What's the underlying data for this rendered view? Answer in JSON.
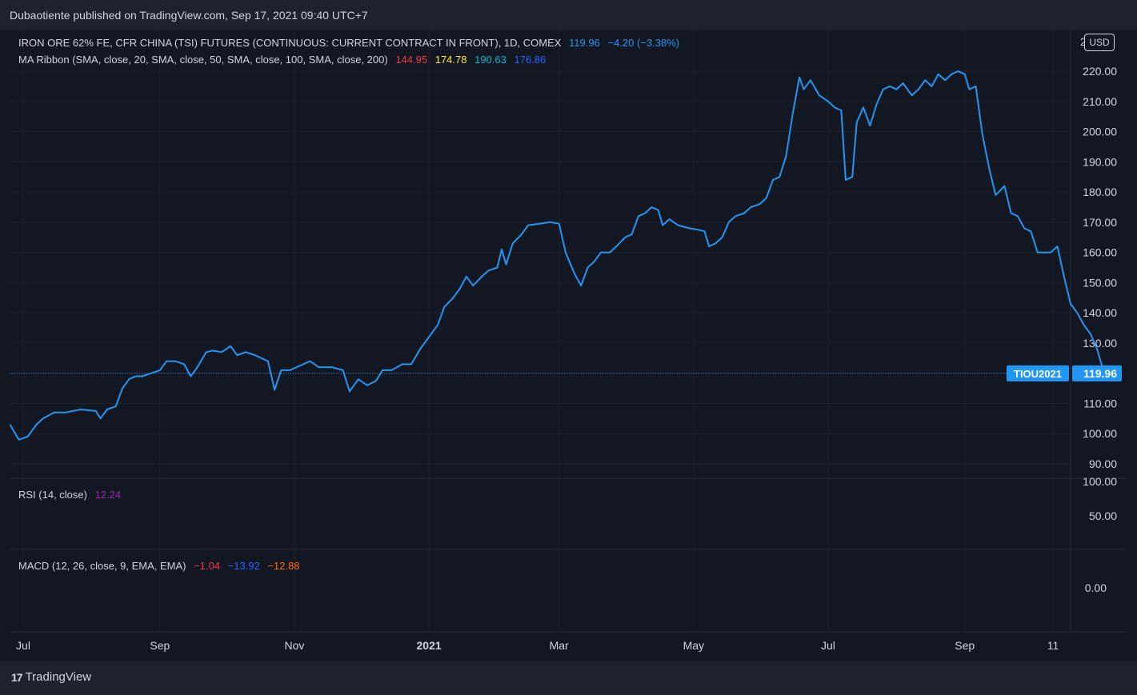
{
  "header": {
    "publish_line": "Dubaotiente published on TradingView.com, Sep 17, 2021 09:40 UTC+7"
  },
  "footer": {
    "brand": "TradingView"
  },
  "legend": {
    "main_title": "IRON ORE 62% FE, CFR CHINA (TSI) FUTURES (CONTINUOUS: CURRENT CONTRACT IN FRONT), 1D, COMEX",
    "main_price": "119.96",
    "main_change": "−4.20 (−3.38%)",
    "ma_title": "MA Ribbon (SMA, close, 20, SMA, close, 50, SMA, close, 100, SMA, close, 200)",
    "ma_values": [
      "144.95",
      "174.78",
      "190.63",
      "176.86"
    ],
    "rsi_title": "RSI (14, close)",
    "rsi_value": "12.24",
    "macd_title": "MACD (12, 26, close, 9, EMA, EMA)",
    "macd_values": [
      "−1.04",
      "−13.92",
      "−12.88"
    ]
  },
  "price_scale": {
    "currency_button": "USD",
    "partial_top_label": "2"
  },
  "colors": {
    "background": "#131722",
    "grid": "#1e2230",
    "line": "#2196f3",
    "axis_text": "#d1d4dc",
    "price_tag": "#2196f3"
  },
  "chart_data": {
    "type": "line",
    "ylim": [
      88,
      228
    ],
    "yticks": [
      "90.00",
      "100.00",
      "110.00",
      "120.00",
      "130.00",
      "140.00",
      "150.00",
      "160.00",
      "170.00",
      "180.00",
      "190.00",
      "200.00",
      "210.00",
      "220.00"
    ],
    "xaxis_labels": [
      {
        "label": "Jul",
        "x": "2020-07-01"
      },
      {
        "label": "Sep",
        "x": "2020-09-01"
      },
      {
        "label": "Nov",
        "x": "2020-11-01"
      },
      {
        "label": "2021",
        "x": "2021-01-01",
        "bold": true
      },
      {
        "label": "Mar",
        "x": "2021-03-01"
      },
      {
        "label": "May",
        "x": "2021-05-01"
      },
      {
        "label": "Jul",
        "x": "2021-07-01"
      },
      {
        "label": "Sep",
        "x": "2021-09-01"
      },
      {
        "label": "11",
        "x": "2021-10-11"
      }
    ],
    "x_range": [
      "2020-06-25",
      "2021-11-01"
    ],
    "last_value": "119.96",
    "symbol_tag": "TIOU2021",
    "rsi_yticks": [
      "100.00",
      "50.00"
    ],
    "macd_yticks": [
      "0.00"
    ],
    "series": [
      {
        "points": [
          [
            "2020-06-25",
            103
          ],
          [
            "2020-06-29",
            98
          ],
          [
            "2020-07-03",
            99
          ],
          [
            "2020-07-07",
            103
          ],
          [
            "2020-07-10",
            105
          ],
          [
            "2020-07-15",
            107
          ],
          [
            "2020-07-20",
            107
          ],
          [
            "2020-07-27",
            108
          ],
          [
            "2020-08-03",
            107.5
          ],
          [
            "2020-08-05",
            105
          ],
          [
            "2020-08-08",
            108
          ],
          [
            "2020-08-12",
            109
          ],
          [
            "2020-08-15",
            115
          ],
          [
            "2020-08-18",
            118
          ],
          [
            "2020-08-21",
            119
          ],
          [
            "2020-08-24",
            119
          ],
          [
            "2020-08-28",
            120
          ],
          [
            "2020-09-01",
            121
          ],
          [
            "2020-09-04",
            124
          ],
          [
            "2020-09-08",
            124
          ],
          [
            "2020-09-12",
            123
          ],
          [
            "2020-09-15",
            119
          ],
          [
            "2020-09-18",
            122
          ],
          [
            "2020-09-22",
            127
          ],
          [
            "2020-09-25",
            127.5
          ],
          [
            "2020-09-29",
            127
          ],
          [
            "2020-10-03",
            129
          ],
          [
            "2020-10-06",
            126
          ],
          [
            "2020-10-10",
            127
          ],
          [
            "2020-10-14",
            126
          ],
          [
            "2020-10-17",
            125
          ],
          [
            "2020-10-20",
            124
          ],
          [
            "2020-10-23",
            114.5
          ],
          [
            "2020-10-26",
            121
          ],
          [
            "2020-10-30",
            121
          ],
          [
            "2020-11-05",
            123
          ],
          [
            "2020-11-08",
            124
          ],
          [
            "2020-11-12",
            122
          ],
          [
            "2020-11-18",
            122
          ],
          [
            "2020-11-23",
            121
          ],
          [
            "2020-11-26",
            114
          ],
          [
            "2020-11-30",
            118
          ],
          [
            "2020-12-04",
            116
          ],
          [
            "2020-12-08",
            117.5
          ],
          [
            "2020-12-11",
            121
          ],
          [
            "2020-12-15",
            121
          ],
          [
            "2020-12-20",
            123
          ],
          [
            "2020-12-24",
            123
          ],
          [
            "2020-12-28",
            128
          ],
          [
            "2021-01-01",
            132
          ],
          [
            "2021-01-05",
            136
          ],
          [
            "2021-01-08",
            142
          ],
          [
            "2021-01-12",
            145
          ],
          [
            "2021-01-15",
            148
          ],
          [
            "2021-01-18",
            152
          ],
          [
            "2021-01-21",
            149
          ],
          [
            "2021-01-25",
            152
          ],
          [
            "2021-01-28",
            154
          ],
          [
            "2021-02-01",
            155
          ],
          [
            "2021-02-03",
            161
          ],
          [
            "2021-02-05",
            156
          ],
          [
            "2021-02-08",
            163
          ],
          [
            "2021-02-12",
            166
          ],
          [
            "2021-02-15",
            169
          ],
          [
            "2021-02-20",
            169.5
          ],
          [
            "2021-02-25",
            170
          ],
          [
            "2021-03-01",
            169.5
          ],
          [
            "2021-03-04",
            160
          ],
          [
            "2021-03-08",
            153
          ],
          [
            "2021-03-11",
            149
          ],
          [
            "2021-03-14",
            155
          ],
          [
            "2021-03-17",
            157
          ],
          [
            "2021-03-20",
            160
          ],
          [
            "2021-03-24",
            160
          ],
          [
            "2021-03-27",
            162
          ],
          [
            "2021-03-31",
            165
          ],
          [
            "2021-04-03",
            166
          ],
          [
            "2021-04-06",
            172
          ],
          [
            "2021-04-09",
            173
          ],
          [
            "2021-04-12",
            175
          ],
          [
            "2021-04-15",
            174
          ],
          [
            "2021-04-17",
            169
          ],
          [
            "2021-04-20",
            171
          ],
          [
            "2021-04-24",
            169
          ],
          [
            "2021-04-29",
            168
          ],
          [
            "2021-05-03",
            167.5
          ],
          [
            "2021-05-06",
            167
          ],
          [
            "2021-05-08",
            162
          ],
          [
            "2021-05-11",
            163
          ],
          [
            "2021-05-14",
            165
          ],
          [
            "2021-05-17",
            170
          ],
          [
            "2021-05-20",
            172
          ],
          [
            "2021-05-24",
            173
          ],
          [
            "2021-05-27",
            175
          ],
          [
            "2021-05-31",
            176
          ],
          [
            "2021-06-03",
            178
          ],
          [
            "2021-06-06",
            184
          ],
          [
            "2021-06-09",
            185
          ],
          [
            "2021-06-12",
            192
          ],
          [
            "2021-06-15",
            206
          ],
          [
            "2021-06-18",
            218
          ],
          [
            "2021-06-20",
            214
          ],
          [
            "2021-06-23",
            217
          ],
          [
            "2021-06-27",
            212
          ],
          [
            "2021-07-01",
            210
          ],
          [
            "2021-07-04",
            208
          ],
          [
            "2021-07-07",
            207
          ],
          [
            "2021-07-09",
            184
          ],
          [
            "2021-07-12",
            185
          ],
          [
            "2021-07-14",
            203
          ],
          [
            "2021-07-17",
            208
          ],
          [
            "2021-07-20",
            202
          ],
          [
            "2021-07-23",
            209
          ],
          [
            "2021-07-26",
            214
          ],
          [
            "2021-07-29",
            215
          ],
          [
            "2021-08-01",
            214
          ],
          [
            "2021-08-04",
            216
          ],
          [
            "2021-08-08",
            212
          ],
          [
            "2021-08-11",
            214
          ],
          [
            "2021-08-14",
            217
          ],
          [
            "2021-08-17",
            215
          ],
          [
            "2021-08-20",
            219
          ],
          [
            "2021-08-23",
            217
          ],
          [
            "2021-08-26",
            219
          ],
          [
            "2021-08-29",
            220
          ],
          [
            "2021-09-01",
            219
          ],
          [
            "2021-09-03",
            214
          ],
          [
            "2021-09-06",
            215
          ],
          [
            "2021-09-09",
            199
          ],
          [
            "2021-09-12",
            188
          ],
          [
            "2021-09-15",
            179
          ],
          [
            "2021-09-19",
            182
          ],
          [
            "2021-09-22",
            173
          ],
          [
            "2021-09-25",
            172
          ],
          [
            "2021-09-28",
            168
          ],
          [
            "2021-10-01",
            167
          ],
          [
            "2021-10-04",
            160
          ],
          [
            "2021-10-07",
            160
          ],
          [
            "2021-10-10",
            160
          ],
          [
            "2021-10-13",
            162
          ],
          [
            "2021-10-16",
            152
          ],
          [
            "2021-10-19",
            143
          ],
          [
            "2021-10-22",
            140
          ],
          [
            "2021-10-25",
            136
          ],
          [
            "2021-10-28",
            133
          ],
          [
            "2021-10-31",
            128
          ],
          [
            "2021-11-02",
            123
          ],
          [
            "2021-11-03",
            119.96
          ]
        ]
      }
    ]
  }
}
